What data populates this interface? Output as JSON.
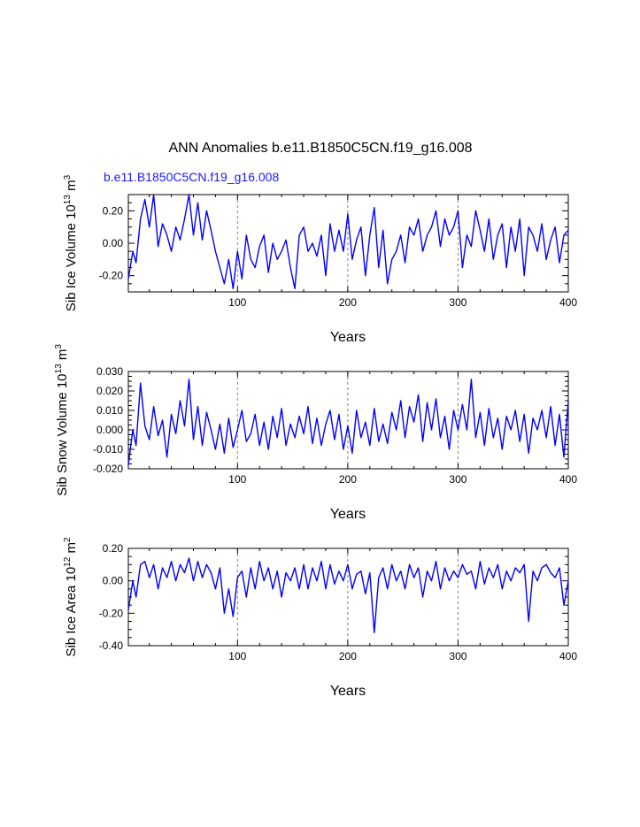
{
  "chart_data": {
    "title": "ANN Anomalies b.e11.B1850C5CN.f19_g16.008",
    "subtitle": "b.e11.B1850C5CN.f19_g16.008",
    "line_color": "#0000ff",
    "grid": {
      "x_dashed_at": [
        100,
        200,
        300
      ]
    },
    "charts": [
      {
        "type": "line",
        "ylabel_main": "Sib Ice Volume 10",
        "ylabel_exp": "13",
        "ylabel_unit": " m",
        "ylabel_unit_exp": "3",
        "xlabel": "Years",
        "xlim": [
          1,
          400
        ],
        "ylim": [
          -0.3,
          0.3
        ],
        "x_ticks": [
          100,
          200,
          300,
          400
        ],
        "y_ticks": [
          -0.2,
          0.0,
          0.2
        ],
        "y_tick_labels": [
          "-0.20",
          "0.00",
          "0.20"
        ],
        "x": [
          1,
          5,
          8,
          12,
          16,
          20,
          24,
          28,
          32,
          36,
          40,
          44,
          48,
          52,
          56,
          60,
          64,
          68,
          72,
          76,
          80,
          84,
          88,
          92,
          96,
          100,
          104,
          108,
          112,
          116,
          120,
          124,
          128,
          132,
          136,
          140,
          144,
          148,
          152,
          156,
          160,
          164,
          168,
          172,
          176,
          180,
          184,
          188,
          192,
          196,
          200,
          204,
          208,
          212,
          216,
          220,
          224,
          228,
          232,
          236,
          240,
          244,
          248,
          252,
          256,
          260,
          264,
          268,
          272,
          276,
          280,
          284,
          288,
          292,
          296,
          300,
          304,
          308,
          312,
          316,
          320,
          324,
          328,
          332,
          336,
          340,
          344,
          348,
          352,
          356,
          360,
          364,
          368,
          372,
          376,
          380,
          384,
          388,
          392,
          396,
          400
        ],
        "values": [
          -0.22,
          -0.05,
          -0.12,
          0.15,
          0.27,
          0.1,
          0.3,
          -0.02,
          0.12,
          0.05,
          -0.05,
          0.1,
          0.02,
          0.15,
          0.3,
          0.05,
          0.25,
          0.02,
          0.2,
          0.08,
          -0.05,
          -0.15,
          -0.25,
          -0.1,
          -0.28,
          -0.05,
          -0.22,
          0.05,
          -0.1,
          -0.15,
          -0.02,
          0.05,
          -0.18,
          0.0,
          -0.1,
          -0.05,
          0.02,
          -0.15,
          -0.28,
          0.05,
          0.1,
          -0.05,
          0.0,
          -0.08,
          0.05,
          -0.2,
          0.12,
          -0.05,
          0.08,
          -0.05,
          0.18,
          -0.1,
          0.02,
          0.1,
          -0.2,
          0.05,
          0.22,
          -0.15,
          0.08,
          -0.25,
          -0.1,
          -0.05,
          0.05,
          -0.12,
          0.1,
          0.05,
          0.15,
          -0.05,
          0.05,
          0.1,
          0.2,
          -0.02,
          0.15,
          0.05,
          0.1,
          0.2,
          -0.15,
          0.05,
          -0.02,
          0.2,
          0.08,
          -0.05,
          0.15,
          -0.1,
          0.05,
          0.12,
          -0.15,
          0.1,
          -0.05,
          0.15,
          -0.2,
          0.1,
          0.05,
          -0.05,
          0.12,
          -0.1,
          0.02,
          0.1,
          -0.12,
          0.05,
          0.08
        ]
      },
      {
        "type": "line",
        "ylabel_main": "Sib Snow Volume 10",
        "ylabel_exp": "13",
        "ylabel_unit": " m",
        "ylabel_unit_exp": "3",
        "xlabel": "Years",
        "xlim": [
          1,
          400
        ],
        "ylim": [
          -0.02,
          0.03
        ],
        "x_ticks": [
          100,
          200,
          300,
          400
        ],
        "y_ticks": [
          -0.02,
          -0.01,
          0.0,
          0.01,
          0.02,
          0.03
        ],
        "y_tick_labels": [
          "-0.020",
          "-0.010",
          "0.000",
          "0.010",
          "0.020",
          "0.030"
        ],
        "x": [
          1,
          5,
          8,
          12,
          16,
          20,
          24,
          28,
          32,
          36,
          40,
          44,
          48,
          52,
          56,
          60,
          64,
          68,
          72,
          76,
          80,
          84,
          88,
          92,
          96,
          100,
          104,
          108,
          112,
          116,
          120,
          124,
          128,
          132,
          136,
          140,
          144,
          148,
          152,
          156,
          160,
          164,
          168,
          172,
          176,
          180,
          184,
          188,
          192,
          196,
          200,
          204,
          208,
          212,
          216,
          220,
          224,
          228,
          232,
          236,
          240,
          244,
          248,
          252,
          256,
          260,
          264,
          268,
          272,
          276,
          280,
          284,
          288,
          292,
          296,
          300,
          304,
          308,
          312,
          316,
          320,
          324,
          328,
          332,
          336,
          340,
          344,
          348,
          352,
          356,
          360,
          364,
          368,
          372,
          376,
          380,
          384,
          388,
          392,
          396,
          400
        ],
        "values": [
          -0.018,
          0.0,
          -0.008,
          0.024,
          0.002,
          -0.005,
          0.012,
          -0.003,
          0.005,
          -0.014,
          0.008,
          -0.002,
          0.015,
          0.002,
          0.026,
          -0.005,
          0.012,
          -0.008,
          0.009,
          0.0,
          -0.01,
          0.003,
          -0.012,
          0.006,
          -0.009,
          0.0,
          0.01,
          -0.006,
          -0.002,
          0.008,
          -0.008,
          0.004,
          -0.01,
          0.007,
          -0.004,
          0.011,
          -0.008,
          0.003,
          -0.004,
          0.007,
          -0.002,
          0.012,
          -0.007,
          0.006,
          -0.008,
          0.003,
          0.01,
          -0.005,
          0.008,
          -0.01,
          0.002,
          -0.012,
          0.01,
          -0.004,
          0.004,
          -0.008,
          0.011,
          -0.006,
          0.003,
          -0.007,
          0.009,
          0.0,
          0.015,
          -0.004,
          0.012,
          0.004,
          0.018,
          -0.006,
          0.014,
          0.0,
          0.016,
          -0.004,
          0.007,
          -0.01,
          0.01,
          0.0,
          0.013,
          0.0,
          0.026,
          -0.004,
          0.009,
          -0.008,
          0.011,
          -0.004,
          0.006,
          -0.01,
          0.007,
          0.0,
          0.01,
          -0.006,
          0.008,
          -0.012,
          0.006,
          0.0,
          0.01,
          -0.004,
          0.012,
          -0.008,
          0.008,
          -0.014,
          0.015
        ]
      },
      {
        "type": "line",
        "ylabel_main": "Sib Ice Area 10",
        "ylabel_exp": "12",
        "ylabel_unit": " m",
        "ylabel_unit_exp": "2",
        "xlabel": "Years",
        "xlim": [
          1,
          400
        ],
        "ylim": [
          -0.4,
          0.2
        ],
        "x_ticks": [
          100,
          200,
          300,
          400
        ],
        "y_ticks": [
          -0.4,
          -0.2,
          0.0,
          0.2
        ],
        "y_tick_labels": [
          "-0.40",
          "-0.20",
          "0.00",
          "0.20"
        ],
        "x": [
          1,
          5,
          8,
          12,
          16,
          20,
          24,
          28,
          32,
          36,
          40,
          44,
          48,
          52,
          56,
          60,
          64,
          68,
          72,
          76,
          80,
          84,
          88,
          92,
          96,
          100,
          104,
          108,
          112,
          116,
          120,
          124,
          128,
          132,
          136,
          140,
          144,
          148,
          152,
          156,
          160,
          164,
          168,
          172,
          176,
          180,
          184,
          188,
          192,
          196,
          200,
          204,
          208,
          212,
          216,
          220,
          224,
          228,
          232,
          236,
          240,
          244,
          248,
          252,
          256,
          260,
          264,
          268,
          272,
          276,
          280,
          284,
          288,
          292,
          296,
          300,
          304,
          308,
          312,
          316,
          320,
          324,
          328,
          332,
          336,
          340,
          344,
          348,
          352,
          356,
          360,
          364,
          368,
          372,
          376,
          380,
          384,
          388,
          392,
          396,
          400
        ],
        "values": [
          -0.18,
          0.0,
          -0.1,
          0.1,
          0.12,
          0.02,
          0.1,
          -0.05,
          0.08,
          0.02,
          0.12,
          0.0,
          0.1,
          0.05,
          0.14,
          0.0,
          0.12,
          0.02,
          0.1,
          0.05,
          -0.05,
          0.08,
          -0.2,
          -0.05,
          -0.22,
          0.02,
          0.06,
          -0.1,
          0.08,
          -0.05,
          0.12,
          0.0,
          0.08,
          -0.05,
          0.06,
          -0.1,
          0.05,
          0.0,
          0.08,
          -0.05,
          0.1,
          -0.05,
          0.08,
          0.0,
          0.12,
          -0.05,
          0.1,
          -0.02,
          0.06,
          0.0,
          0.1,
          -0.05,
          0.04,
          0.06,
          -0.08,
          0.05,
          -0.32,
          0.02,
          0.08,
          -0.05,
          0.1,
          0.0,
          0.06,
          -0.05,
          0.1,
          0.02,
          0.08,
          -0.1,
          0.06,
          0.0,
          0.12,
          -0.05,
          0.08,
          0.0,
          0.06,
          0.02,
          0.1,
          0.04,
          0.06,
          -0.05,
          0.12,
          -0.02,
          0.08,
          0.02,
          0.1,
          -0.05,
          0.06,
          0.0,
          0.08,
          0.05,
          0.1,
          -0.25,
          0.06,
          0.0,
          0.08,
          0.1,
          0.05,
          0.02,
          0.08,
          -0.15,
          0.0
        ]
      }
    ]
  }
}
